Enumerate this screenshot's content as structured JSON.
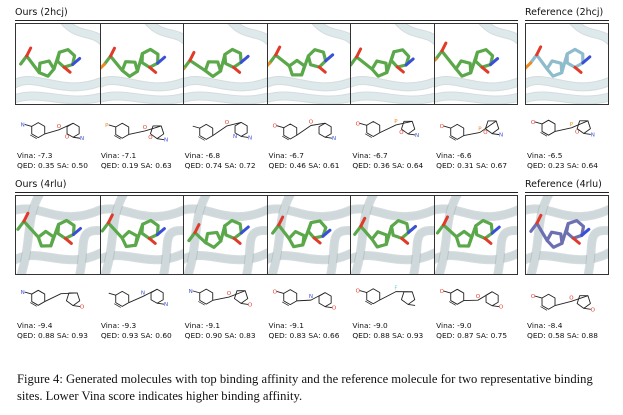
{
  "sections": [
    {
      "title": "Ours (2hcj)",
      "ref_title": "Reference (2hcj)",
      "molecules": [
        {
          "vina": "Vina: -7.3",
          "qed": "QED: 0.35",
          "sa": "SA: 0.50"
        },
        {
          "vina": "Vina: -7.1",
          "qed": "QED: 0.19",
          "sa": "SA: 0.63"
        },
        {
          "vina": "Vina: -6.8",
          "qed": "QED: 0.74",
          "sa": "SA: 0.72"
        },
        {
          "vina": "Vina: -6.7",
          "qed": "QED: 0.46",
          "sa": "SA: 0.61"
        },
        {
          "vina": "Vina: -6.7",
          "qed": "QED: 0.36",
          "sa": "SA: 0.64"
        },
        {
          "vina": "Vina: -6.6",
          "qed": "QED: 0.31",
          "sa": "SA: 0.67"
        }
      ],
      "reference": {
        "vina": "Vina: -6.5",
        "qed": "QED: 0.23",
        "sa": "SA: 0.64"
      }
    },
    {
      "title": "Ours (4rlu)",
      "ref_title": "Reference (4rlu)",
      "molecules": [
        {
          "vina": "Vina: -9.4",
          "qed": "QED: 0.88",
          "sa": "SA: 0.93"
        },
        {
          "vina": "Vina: -9.3",
          "qed": "QED: 0.93",
          "sa": "SA: 0.60"
        },
        {
          "vina": "Vina: -9.1",
          "qed": "QED: 0.90",
          "sa": "SA: 0.83"
        },
        {
          "vina": "Vina: -9.1",
          "qed": "QED: 0.83",
          "sa": "SA: 0.66"
        },
        {
          "vina": "Vina: -9.0",
          "qed": "QED: 0.88",
          "sa": "SA: 0.93"
        },
        {
          "vina": "Vina: -9.0",
          "qed": "QED: 0.87",
          "sa": "SA: 0.75"
        }
      ],
      "reference": {
        "vina": "Vina: -8.4",
        "qed": "QED: 0.58",
        "sa": "SA: 0.88"
      }
    }
  ],
  "caption": "Figure 4: Generated molecules with top binding affinity and the reference molecule for two representative binding sites. Lower Vina score indicates higher binding affinity.",
  "colors": {
    "ligand_generated": "#5aa84a",
    "ligand_reference_2hcj": "#8fbccc",
    "ligand_reference_4rlu": "#6c6fb0",
    "oxygen": "#e03a2a",
    "nitrogen": "#3a4fd8",
    "phosphorus": "#f08a1c",
    "fluorine": "#6fd6d6",
    "protein_light": "#dde9ea",
    "protein_dark": "#8a9ba0"
  }
}
